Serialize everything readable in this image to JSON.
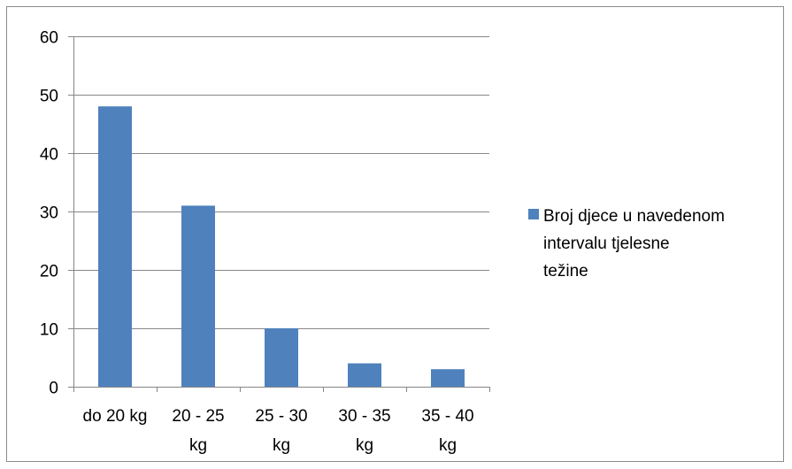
{
  "chart_data": {
    "type": "bar",
    "categories": [
      [
        "do 20 kg"
      ],
      [
        "20 - 25",
        "kg"
      ],
      [
        "25 - 30",
        "kg"
      ],
      [
        "30 - 35",
        "kg"
      ],
      [
        "35 - 40",
        "kg"
      ]
    ],
    "series": [
      {
        "name": "Broj djece u navedenom intervalu  tjelesne težine",
        "values": [
          48,
          31,
          10,
          4,
          3
        ],
        "color": "#4f81bd"
      }
    ],
    "legend_lines": [
      "Broj djece u navedenom",
      "intervalu  tjelesne",
      "težine"
    ],
    "legend_position": "right",
    "ylim": [
      0,
      60
    ],
    "yticks": [
      0,
      10,
      20,
      30,
      40,
      50,
      60
    ],
    "grid": true,
    "gridline_color": "#868686",
    "axis_color": "#868686"
  }
}
